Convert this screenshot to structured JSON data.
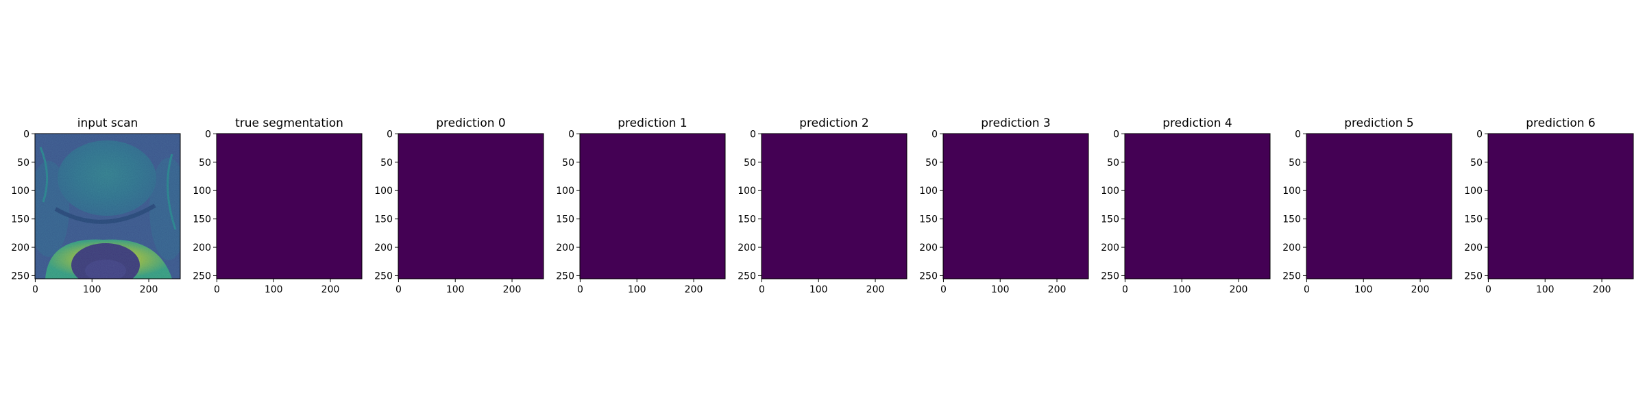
{
  "chart_data": [
    {
      "type": "heatmap",
      "title": "input scan",
      "content": "grayscale MRI slice rendered with viridis colormap",
      "xlim": [
        0,
        255
      ],
      "ylim": [
        255,
        0
      ],
      "x_ticks": [
        "0",
        "100",
        "200"
      ],
      "y_ticks": [
        "0",
        "50",
        "100",
        "150",
        "200",
        "250"
      ]
    },
    {
      "type": "heatmap",
      "title": "true segmentation",
      "fill_value": 0,
      "fill_color": "#440154",
      "xlim": [
        0,
        255
      ],
      "ylim": [
        255,
        0
      ],
      "x_ticks": [
        "0",
        "100",
        "200"
      ],
      "y_ticks": [
        "0",
        "50",
        "100",
        "150",
        "200",
        "250"
      ]
    },
    {
      "type": "heatmap",
      "title": "prediction 0",
      "fill_value": 0,
      "fill_color": "#440154",
      "xlim": [
        0,
        255
      ],
      "ylim": [
        255,
        0
      ],
      "x_ticks": [
        "0",
        "100",
        "200"
      ],
      "y_ticks": [
        "0",
        "50",
        "100",
        "150",
        "200",
        "250"
      ]
    },
    {
      "type": "heatmap",
      "title": "prediction 1",
      "fill_value": 0,
      "fill_color": "#440154",
      "xlim": [
        0,
        255
      ],
      "ylim": [
        255,
        0
      ],
      "x_ticks": [
        "0",
        "100",
        "200"
      ],
      "y_ticks": [
        "0",
        "50",
        "100",
        "150",
        "200",
        "250"
      ]
    },
    {
      "type": "heatmap",
      "title": "prediction 2",
      "fill_value": 0,
      "fill_color": "#440154",
      "xlim": [
        0,
        255
      ],
      "ylim": [
        255,
        0
      ],
      "x_ticks": [
        "0",
        "100",
        "200"
      ],
      "y_ticks": [
        "0",
        "50",
        "100",
        "150",
        "200",
        "250"
      ]
    },
    {
      "type": "heatmap",
      "title": "prediction 3",
      "fill_value": 0,
      "fill_color": "#440154",
      "xlim": [
        0,
        255
      ],
      "ylim": [
        255,
        0
      ],
      "x_ticks": [
        "0",
        "100",
        "200"
      ],
      "y_ticks": [
        "0",
        "50",
        "100",
        "150",
        "200",
        "250"
      ]
    },
    {
      "type": "heatmap",
      "title": "prediction 4",
      "fill_value": 0,
      "fill_color": "#440154",
      "xlim": [
        0,
        255
      ],
      "ylim": [
        255,
        0
      ],
      "x_ticks": [
        "0",
        "100",
        "200"
      ],
      "y_ticks": [
        "0",
        "50",
        "100",
        "150",
        "200",
        "250"
      ]
    },
    {
      "type": "heatmap",
      "title": "prediction 5",
      "fill_value": 0,
      "fill_color": "#440154",
      "xlim": [
        0,
        255
      ],
      "ylim": [
        255,
        0
      ],
      "x_ticks": [
        "0",
        "100",
        "200"
      ],
      "y_ticks": [
        "0",
        "50",
        "100",
        "150",
        "200",
        "250"
      ]
    },
    {
      "type": "heatmap",
      "title": "prediction 6",
      "fill_value": 0,
      "fill_color": "#440154",
      "xlim": [
        0,
        255
      ],
      "ylim": [
        255,
        0
      ],
      "x_ticks": [
        "0",
        "100",
        "200"
      ],
      "y_ticks": [
        "0",
        "50",
        "100",
        "150",
        "200",
        "250"
      ]
    }
  ],
  "colors": {
    "background": "#ffffff",
    "empty_mask": "#440154",
    "axis": "#000000"
  }
}
